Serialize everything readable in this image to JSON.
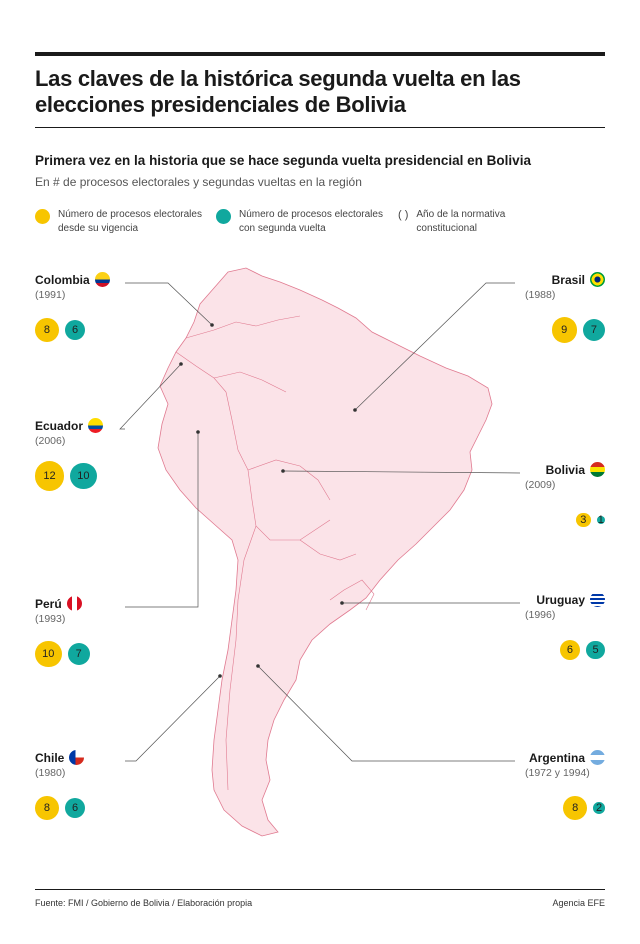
{
  "header": {
    "title": "Las claves de la histórica segunda vuelta en las elecciones presidenciales de Bolivia",
    "subtitle": "Primera vez en la historia que se hace segunda vuelta presidencial en Bolivia",
    "description": "En # de procesos electorales y segundas vueltas en la región"
  },
  "legend": {
    "processes": "Número de procesos electorales\ndesde su vigencia",
    "runoffs": "Número de procesos electorales\ncon segunda vuelta",
    "paren_symbol": "( )",
    "year": "Año de la normativa\nconstitucional"
  },
  "colors": {
    "processes": "#f7c500",
    "runoffs": "#10a89e",
    "map_fill": "#fbe3e8",
    "map_stroke": "#e07a90"
  },
  "chart_data": {
    "type": "bubble",
    "series": [
      {
        "name": "Número de procesos electorales desde su vigencia"
      },
      {
        "name": "Número de procesos electorales con segunda vuelta"
      }
    ],
    "countries": [
      {
        "name": "Colombia",
        "year": "(1991)",
        "processes": 8,
        "runoffs": 6
      },
      {
        "name": "Ecuador",
        "year": "(2006)",
        "processes": 12,
        "runoffs": 10
      },
      {
        "name": "Perú",
        "year": "(1993)",
        "processes": 10,
        "runoffs": 7
      },
      {
        "name": "Chile",
        "year": "(1980)",
        "processes": 8,
        "runoffs": 6
      },
      {
        "name": "Brasil",
        "year": "(1988)",
        "processes": 9,
        "runoffs": 7
      },
      {
        "name": "Bolivia",
        "year": "(2009)",
        "processes": 3,
        "runoffs": 1
      },
      {
        "name": "Uruguay",
        "year": "(1996)",
        "processes": 6,
        "runoffs": 5
      },
      {
        "name": "Argentina",
        "year": "(1972 y 1994)",
        "processes": 8,
        "runoffs": 2
      }
    ]
  },
  "footer": {
    "source": "Fuente: FMI / Gobierno de Bolivia / Elaboración propia",
    "agency": "Agencia EFE"
  }
}
